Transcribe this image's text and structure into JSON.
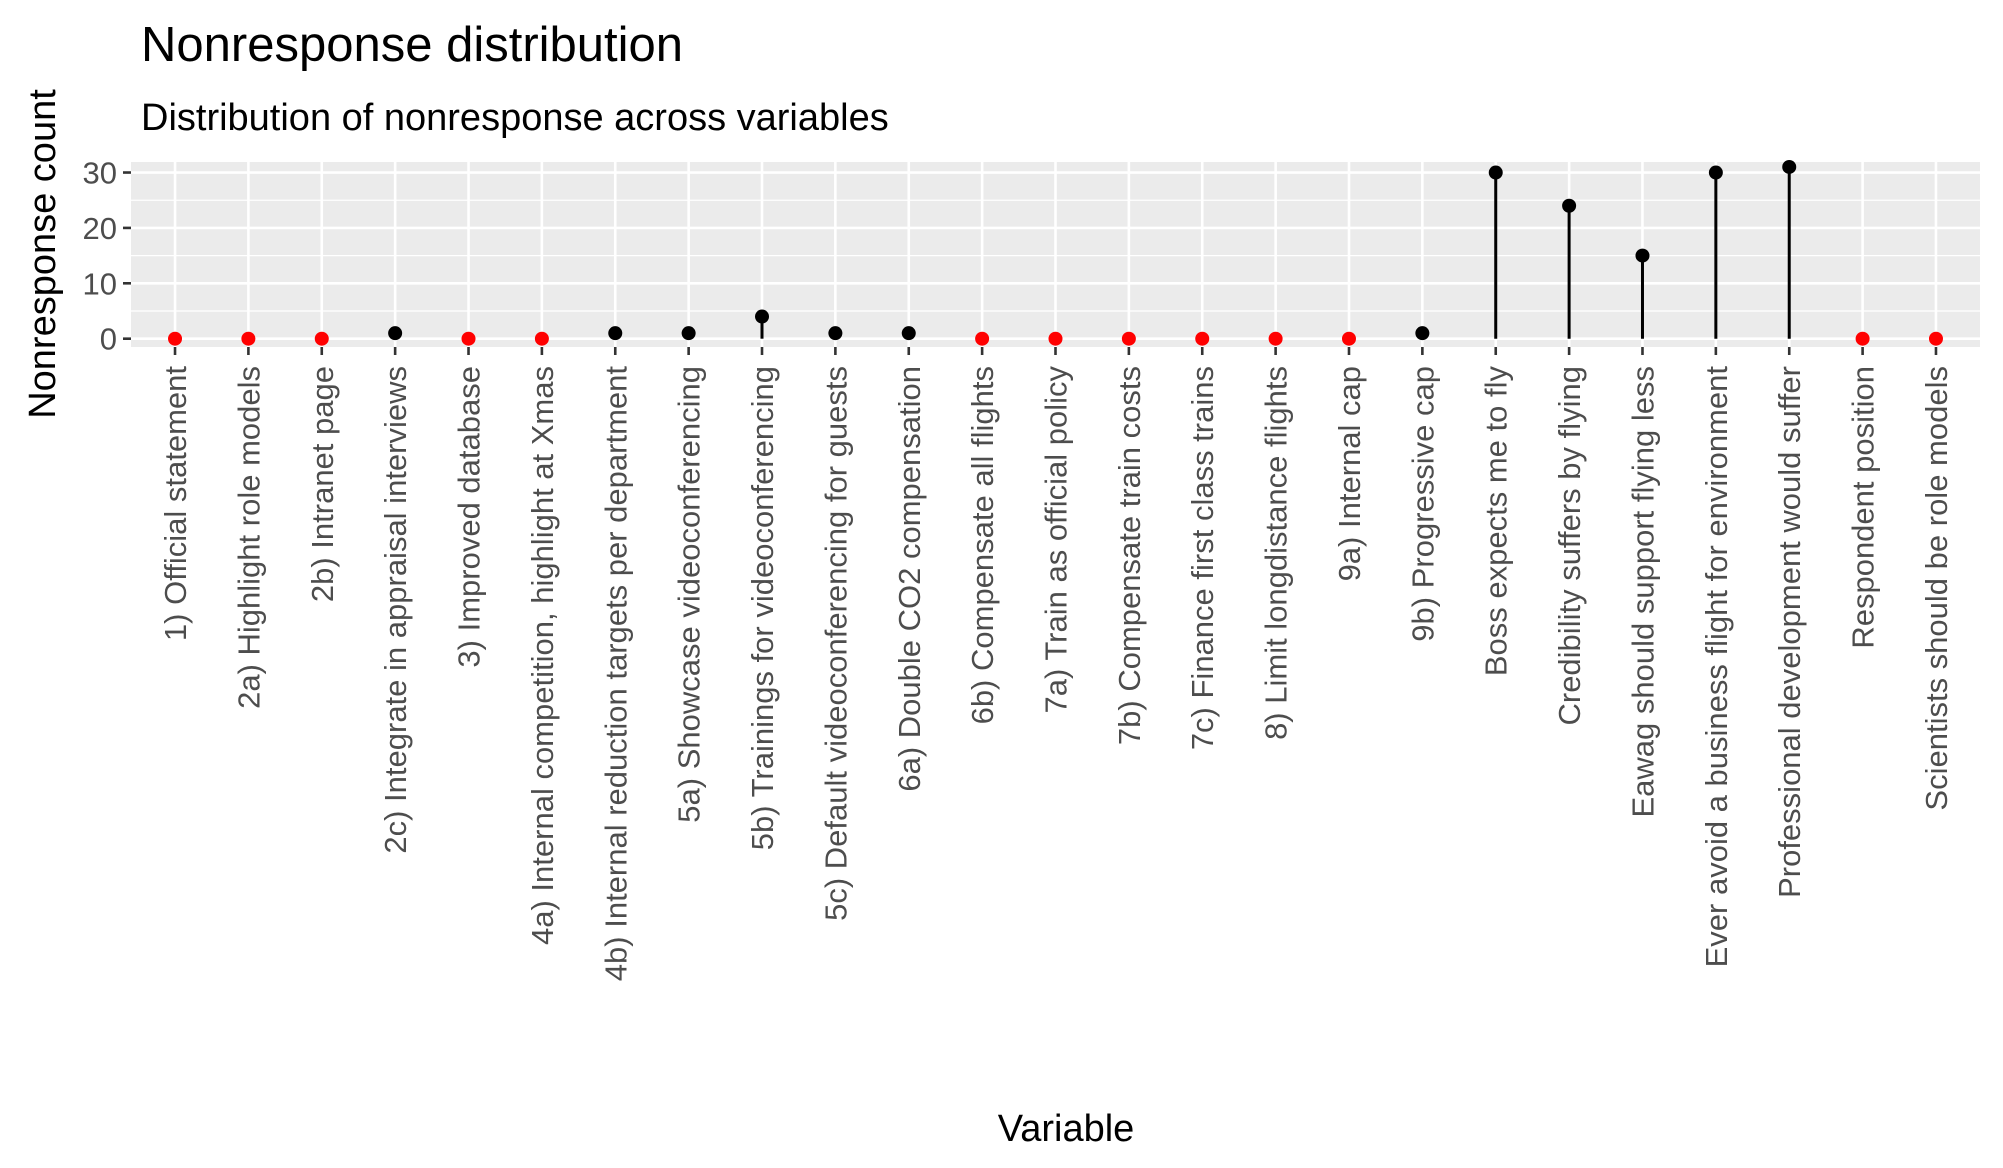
{
  "chart_data": {
    "type": "lollipop",
    "title": "Nonresponse distribution",
    "subtitle": "Distribution of nonresponse across variables",
    "xlabel": "Variable",
    "ylabel": "Nonresponse count",
    "ylim": [
      -1.5,
      31.9
    ],
    "yticks": [
      0,
      10,
      20,
      30
    ],
    "grid": true,
    "colors": {
      "zero": "#ff0000",
      "nonzero": "#000000",
      "panel": "#ebebeb",
      "grid": "#ffffff"
    },
    "categories": [
      "1) Official statement",
      "2a) Highlight role models",
      "2b) Intranet page",
      "2c) Integrate in appraisal interviews",
      "3) Improved database",
      "4a) Internal competition, highlight at Xmas",
      "4b) Internal reduction targets per department",
      "5a) Showcase videoconferencing",
      "5b) Trainings for videoconferencing",
      "5c) Default videoconferencing for guests",
      "6a) Double CO2 compensation",
      "6b) Compensate all flights",
      "7a) Train as official policy",
      "7b) Compensate train costs",
      "7c) Finance first class trains",
      "8) Limit longdistance flights",
      "9a) Internal cap",
      "9b) Progressive cap",
      "Boss expects me to fly",
      "Credibility suffers by flying",
      "Eawag should support flying less",
      "Ever avoid a business flight for environment",
      "Professional development would suffer",
      "Respondent position",
      "Scientists should be role models"
    ],
    "values": [
      0,
      0,
      0,
      1,
      0,
      0,
      1,
      1,
      4,
      1,
      1,
      0,
      0,
      0,
      0,
      0,
      0,
      1,
      30,
      24,
      15,
      30,
      31,
      0,
      0
    ]
  }
}
